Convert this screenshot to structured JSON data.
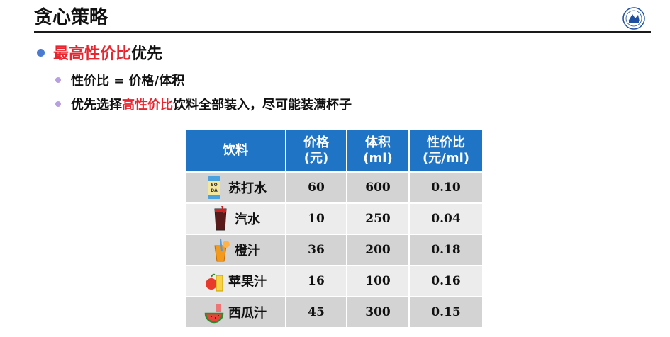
{
  "title": "贪心策略",
  "bullet1": {
    "red": "最高性价比",
    "rest": "优先"
  },
  "sub1": "性价比 = 价格/体积",
  "sub2": {
    "pre": "优先选择",
    "red": "高性价比",
    "post": "饮料全部装入，尽可能装满杯子"
  },
  "table": {
    "headers": [
      "饮料",
      "价格",
      "(元)",
      "体积",
      "(ml)",
      "性价比",
      "(元/ml)"
    ],
    "rows": [
      {
        "name": "苏打水",
        "price": "60",
        "volume": "600",
        "ratio": "0.10",
        "icon": "soda-can-icon"
      },
      {
        "name": "汽水",
        "price": "10",
        "volume": "250",
        "ratio": "0.04",
        "icon": "cola-glass-icon"
      },
      {
        "name": "橙汁",
        "price": "36",
        "volume": "200",
        "ratio": "0.18",
        "icon": "orange-juice-icon"
      },
      {
        "name": "苹果汁",
        "price": "16",
        "volume": "100",
        "ratio": "0.16",
        "icon": "apple-juice-icon"
      },
      {
        "name": "西瓜汁",
        "price": "45",
        "volume": "300",
        "ratio": "0.15",
        "icon": "watermelon-icon"
      }
    ]
  },
  "colors": {
    "accent_red": "#e8242e",
    "header_blue": "#1f74c6"
  }
}
